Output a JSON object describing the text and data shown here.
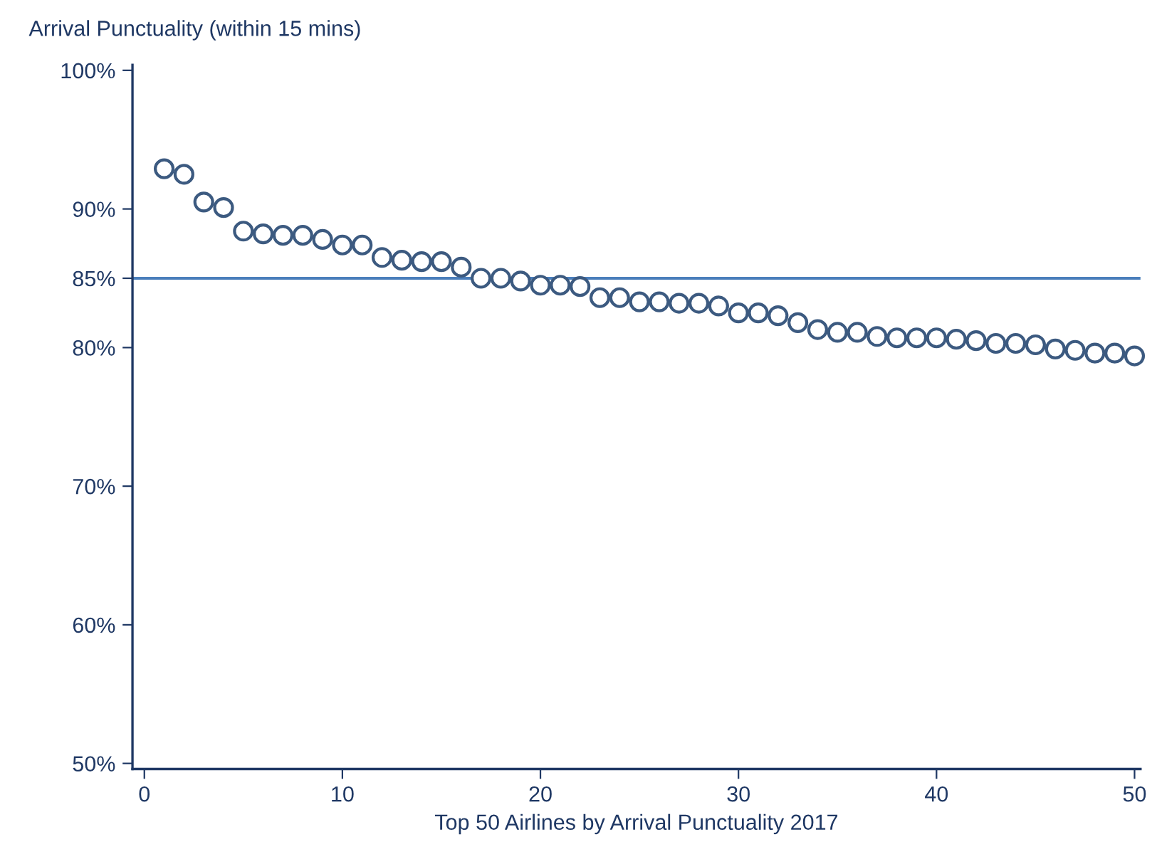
{
  "chart_data": {
    "type": "scatter",
    "ylabel": "Arrival Punctuality (within 15 mins)",
    "xlabel": "Top 50 Airlines by Arrival Punctuality 2017",
    "x": [
      1,
      2,
      3,
      4,
      5,
      6,
      7,
      8,
      9,
      10,
      11,
      12,
      13,
      14,
      15,
      16,
      17,
      18,
      19,
      20,
      21,
      22,
      23,
      24,
      25,
      26,
      27,
      28,
      29,
      30,
      31,
      32,
      33,
      34,
      35,
      36,
      37,
      38,
      39,
      40,
      41,
      42,
      43,
      44,
      45,
      46,
      47,
      48,
      49,
      50
    ],
    "series": [
      {
        "color": "#3c5a80",
        "values": [
          92.9,
          92.5,
          90.5,
          90.1,
          88.4,
          88.2,
          88.1,
          88.1,
          87.8,
          87.4,
          87.4,
          86.5,
          86.3,
          86.2,
          86.2,
          85.8,
          85.0,
          85.0,
          84.8,
          84.5,
          84.5,
          84.4,
          83.6,
          83.6,
          83.3,
          83.3,
          83.2,
          83.2,
          83.0,
          82.5,
          82.5,
          82.3,
          81.8,
          81.3,
          81.1,
          81.1,
          80.8,
          80.7,
          80.7,
          80.7,
          80.6,
          80.5,
          80.3,
          80.3,
          80.2,
          79.9,
          79.8,
          79.6,
          79.6,
          79.4
        ]
      }
    ],
    "marker": "circle",
    "grid": false,
    "legend": false,
    "xlim": [
      -0.6,
      50.3
    ],
    "xticks": [
      0,
      10,
      20,
      30,
      40,
      50
    ],
    "ylim": [
      49.6,
      100.4
    ],
    "yticks": [
      {
        "value": 50,
        "label": "50%"
      },
      {
        "value": 60,
        "label": "60%"
      },
      {
        "value": 70,
        "label": "70%"
      },
      {
        "value": 80,
        "label": "80%"
      },
      {
        "value": 85,
        "label": "85%"
      },
      {
        "value": 90,
        "label": "90%"
      },
      {
        "value": 100,
        "label": "100%"
      }
    ],
    "ref_lines": [
      {
        "axis": "y",
        "value": 85,
        "color": "#4a7ebb",
        "line_style": "solid"
      }
    ]
  }
}
